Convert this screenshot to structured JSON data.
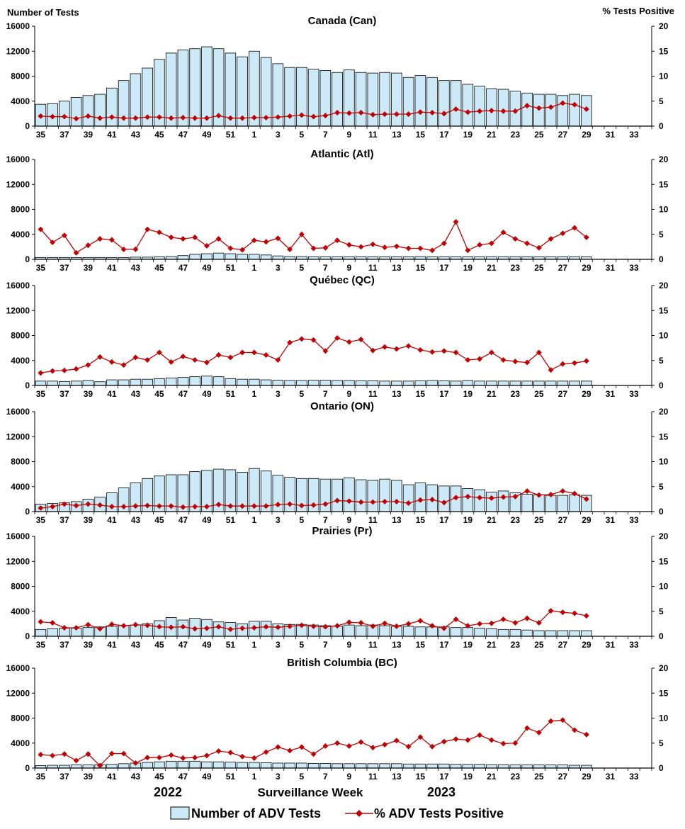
{
  "chart_data": {
    "type": "bar+line",
    "left_axis_title": "Number of Tests",
    "right_axis_title": "%  Tests Positive",
    "x_title": "Surveillance Week",
    "year_labels": [
      "2022",
      "2023"
    ],
    "weeks": [
      "35",
      "36",
      "37",
      "38",
      "39",
      "40",
      "41",
      "42",
      "43",
      "44",
      "45",
      "46",
      "47",
      "48",
      "49",
      "50",
      "51",
      "52",
      "1",
      "2",
      "3",
      "4",
      "5",
      "6",
      "7",
      "8",
      "9",
      "10",
      "11",
      "12",
      "13",
      "14",
      "15",
      "16",
      "17",
      "18",
      "19",
      "20",
      "21",
      "22",
      "23",
      "24",
      "25",
      "26",
      "27",
      "28",
      "29",
      "30",
      "31",
      "32",
      "33",
      "34"
    ],
    "x_tick_labels": [
      "35",
      "37",
      "39",
      "41",
      "43",
      "45",
      "47",
      "49",
      "51",
      "1",
      "3",
      "5",
      "7",
      "9",
      "11",
      "13",
      "15",
      "17",
      "19",
      "21",
      "23",
      "25",
      "27",
      "29",
      "31",
      "33"
    ],
    "left_ticks": [
      0,
      4000,
      8000,
      12000,
      16000
    ],
    "right_ticks": [
      0,
      5,
      10,
      15,
      20
    ],
    "left_ylim": [
      0,
      16000
    ],
    "right_ylim": [
      0,
      20
    ],
    "legend": {
      "bars": "Number of ADV Tests",
      "line": "% ADV Tests Positive"
    },
    "colors": {
      "bar_fill": "#cce9f8",
      "bar_stroke": "#000000",
      "line": "#c00000"
    },
    "panels": [
      {
        "title": "Canada (Can)",
        "tests": [
          3500,
          3600,
          4000,
          4600,
          4900,
          5100,
          6100,
          7300,
          8400,
          9300,
          10700,
          11700,
          12200,
          12400,
          12700,
          12400,
          11700,
          11100,
          12000,
          11000,
          10000,
          9400,
          9400,
          9100,
          8900,
          8600,
          9000,
          8600,
          8500,
          8600,
          8500,
          7800,
          8100,
          7800,
          7300,
          7300,
          6700,
          6400,
          6000,
          5900,
          5600,
          5300,
          5100,
          5100,
          4900,
          5100,
          4900
        ],
        "pct": [
          2.0,
          1.9,
          1.9,
          1.5,
          2.0,
          1.6,
          1.8,
          1.6,
          1.6,
          1.8,
          1.8,
          1.6,
          1.7,
          1.6,
          1.6,
          2.1,
          1.6,
          1.6,
          1.7,
          1.7,
          1.8,
          2.0,
          2.2,
          1.9,
          2.1,
          2.7,
          2.6,
          2.7,
          2.3,
          2.4,
          2.4,
          2.4,
          2.8,
          2.7,
          2.5,
          3.4,
          2.8,
          3.0,
          3.1,
          3.0,
          3.0,
          4.1,
          3.6,
          3.8,
          4.6,
          4.3,
          3.4
        ]
      },
      {
        "title": "Atlantic (Atl)",
        "tests": [
          300,
          300,
          300,
          300,
          300,
          300,
          300,
          300,
          350,
          350,
          400,
          450,
          600,
          800,
          900,
          1000,
          900,
          800,
          800,
          700,
          550,
          450,
          450,
          400,
          400,
          400,
          400,
          400,
          400,
          400,
          400,
          400,
          450,
          400,
          400,
          400,
          400,
          400,
          400,
          400,
          400,
          400,
          400,
          400,
          400,
          400,
          400
        ],
        "pct": [
          6.0,
          3.4,
          4.8,
          1.3,
          2.8,
          4.1,
          3.9,
          2.0,
          2.0,
          6.0,
          5.4,
          4.4,
          4.1,
          4.4,
          2.7,
          4.1,
          2.2,
          1.9,
          3.8,
          3.5,
          4.2,
          2.0,
          5.0,
          2.2,
          2.3,
          3.8,
          2.9,
          2.5,
          3.0,
          2.4,
          2.6,
          2.2,
          2.2,
          1.8,
          3.2,
          7.5,
          1.8,
          2.9,
          3.2,
          5.4,
          4.1,
          3.2,
          2.3,
          4.1,
          5.2,
          6.3,
          4.4
        ]
      },
      {
        "title": "Québec (QC)",
        "tests": [
          700,
          700,
          650,
          700,
          800,
          600,
          900,
          900,
          1000,
          1000,
          1100,
          1200,
          1300,
          1400,
          1500,
          1400,
          1100,
          1000,
          1000,
          900,
          850,
          800,
          800,
          850,
          850,
          800,
          800,
          750,
          750,
          700,
          700,
          700,
          750,
          800,
          750,
          700,
          800,
          700,
          700,
          700,
          700,
          700,
          700,
          700,
          700,
          700,
          700
        ],
        "pct": [
          2.5,
          2.9,
          3.0,
          3.3,
          4.1,
          5.7,
          4.7,
          4.1,
          5.6,
          5.1,
          6.6,
          4.7,
          5.8,
          5.1,
          4.6,
          6.1,
          5.6,
          6.6,
          6.6,
          6.1,
          5.1,
          8.6,
          9.3,
          9.1,
          6.9,
          9.5,
          8.7,
          9.2,
          7.0,
          7.7,
          7.3,
          7.9,
          7.1,
          6.7,
          6.9,
          6.6,
          5.1,
          5.3,
          6.6,
          5.1,
          4.8,
          4.6,
          6.6,
          3.1,
          4.3,
          4.5,
          4.9
        ]
      },
      {
        "title": "Ontario (ON)",
        "tests": [
          1200,
          1300,
          1400,
          1600,
          2000,
          2300,
          3000,
          3800,
          4600,
          5300,
          5700,
          5900,
          5900,
          6400,
          6600,
          6800,
          6700,
          6300,
          6900,
          6500,
          5800,
          5500,
          5300,
          5300,
          5200,
          5200,
          5400,
          5100,
          5000,
          5200,
          5000,
          4300,
          4600,
          4300,
          4100,
          4100,
          3700,
          3500,
          3100,
          3300,
          3000,
          2800,
          2700,
          2600,
          2600,
          2700,
          2600
        ],
        "pct": [
          0.7,
          1.0,
          1.5,
          1.2,
          1.5,
          1.3,
          1.0,
          1.0,
          1.1,
          1.2,
          1.1,
          1.1,
          0.9,
          1.0,
          1.0,
          1.4,
          1.1,
          1.1,
          1.1,
          1.1,
          1.4,
          1.5,
          1.2,
          1.3,
          1.5,
          2.2,
          2.1,
          1.9,
          1.9,
          2.0,
          2.0,
          1.7,
          2.3,
          2.4,
          1.8,
          2.8,
          3.0,
          2.8,
          2.7,
          2.9,
          3.0,
          4.1,
          3.3,
          3.4,
          4.1,
          3.6,
          2.5
        ]
      },
      {
        "title": "Prairies (Pr)",
        "tests": [
          1100,
          1200,
          1300,
          1300,
          1400,
          1500,
          1600,
          1700,
          1800,
          2000,
          2500,
          3000,
          2600,
          2900,
          2700,
          2300,
          2200,
          2000,
          2400,
          2400,
          2000,
          1900,
          1900,
          1800,
          1700,
          1600,
          1800,
          1700,
          1800,
          1700,
          1600,
          1600,
          1500,
          1500,
          1500,
          1400,
          1400,
          1300,
          1200,
          1100,
          1100,
          1000,
          900,
          900,
          900,
          900,
          900
        ],
        "pct": [
          2.9,
          2.7,
          1.7,
          1.7,
          2.3,
          1.5,
          2.4,
          2.1,
          2.3,
          2.2,
          1.9,
          1.8,
          1.9,
          1.5,
          1.6,
          1.9,
          1.4,
          1.6,
          1.7,
          1.9,
          1.8,
          2.0,
          2.2,
          2.0,
          1.9,
          2.1,
          2.8,
          2.7,
          2.0,
          2.6,
          2.0,
          2.5,
          3.1,
          2.1,
          1.6,
          3.4,
          2.1,
          2.5,
          2.6,
          3.4,
          2.7,
          3.6,
          2.7,
          5.1,
          4.8,
          4.6,
          4.1
        ]
      },
      {
        "title": "British Columbia (BC)",
        "tests": [
          400,
          450,
          450,
          500,
          500,
          550,
          600,
          700,
          800,
          900,
          1000,
          1100,
          1100,
          1100,
          1000,
          1000,
          950,
          900,
          900,
          850,
          800,
          800,
          800,
          750,
          750,
          700,
          700,
          700,
          700,
          700,
          700,
          650,
          650,
          650,
          650,
          600,
          600,
          600,
          550,
          550,
          500,
          500,
          500,
          500,
          500,
          450,
          450
        ],
        "pct": [
          2.7,
          2.5,
          2.8,
          1.5,
          2.8,
          0.5,
          2.9,
          2.9,
          1.0,
          2.1,
          2.1,
          2.6,
          2.0,
          2.1,
          2.5,
          3.4,
          3.1,
          2.3,
          2.0,
          3.2,
          4.2,
          3.5,
          4.2,
          2.8,
          4.4,
          5.0,
          4.4,
          5.2,
          4.1,
          4.7,
          5.5,
          4.3,
          6.2,
          4.3,
          5.3,
          5.8,
          5.6,
          6.6,
          5.6,
          4.9,
          5.0,
          8.0,
          7.1,
          9.4,
          9.6,
          7.6,
          6.7
        ]
      }
    ]
  }
}
